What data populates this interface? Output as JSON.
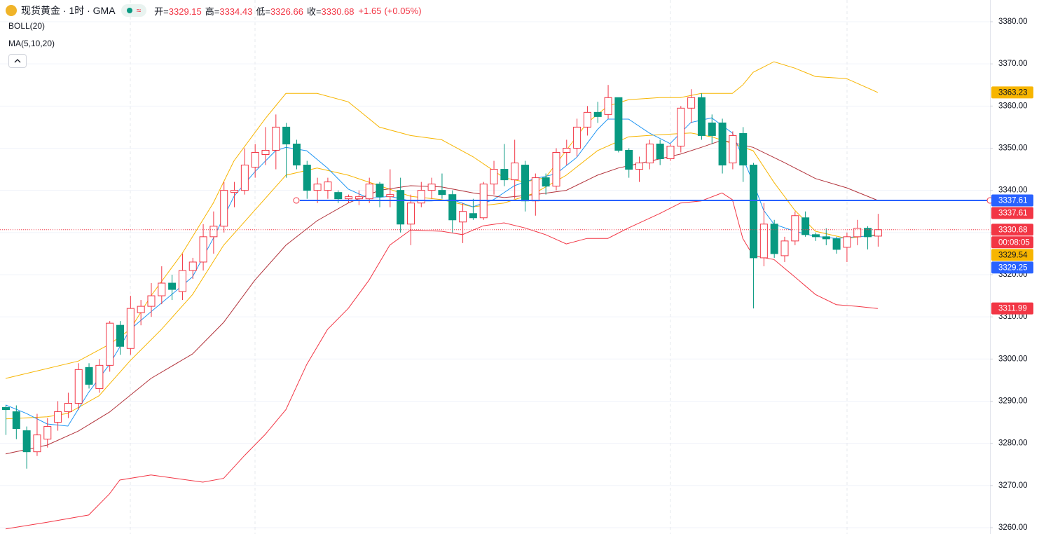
{
  "header": {
    "title": "现货黄金 · 1时 · GMA",
    "ohlc": [
      {
        "label": "开=",
        "value": 3329.15
      },
      {
        "label": "高=",
        "value": 3334.43
      },
      {
        "label": "低=",
        "value": 3326.66
      },
      {
        "label": "收=",
        "value": 3330.68
      }
    ],
    "change": "+1.65",
    "change_pct": "(+0.05%)"
  },
  "indicators": [
    "BOLL(20)",
    "MA(5,10,20)"
  ],
  "chart_data": {
    "type": "candlestick",
    "up_color": "#f23645",
    "down_color": "#089981",
    "open": [
      3288.5,
      3287.5,
      3283,
      3278,
      3281,
      3285,
      3287.5,
      3289.5,
      3298,
      3293,
      3298.5,
      3308,
      3302.5,
      3311,
      3312.5,
      3315,
      3318,
      3316,
      3321,
      3323,
      3329,
      3331.5,
      3339.5,
      3340,
      3345.5,
      3348.5,
      3349.5,
      3355,
      3351,
      3346,
      3340,
      3340,
      3339.5,
      3338,
      3338,
      3338,
      3341.5,
      3338.5,
      3340,
      3332,
      3337,
      3340,
      3340,
      3339,
      3332.5,
      3334.5,
      3333.5,
      3341.5,
      3345,
      3342.5,
      3346,
      3337.5,
      3343,
      3341,
      3349,
      3350,
      3355,
      3358.5,
      3358,
      3362,
      3349.5,
      3345,
      3346.5,
      3351,
      3347.5,
      3350.5,
      3359.5,
      3362,
      3356,
      3356,
      3346.5,
      3353.5,
      3346,
      3324,
      3332,
      3324.5,
      3328,
      3333.5,
      3329.5,
      3329,
      3328.5,
      3326.5,
      3329,
      3331,
      3329.15
    ],
    "high": [
      3289,
      3289,
      3284,
      3287,
      3286,
      3290,
      3292,
      3299,
      3299,
      3300,
      3309,
      3309,
      3315,
      3314,
      3318,
      3322,
      3320,
      3325,
      3324,
      3332,
      3335,
      3342,
      3342,
      3350,
      3351,
      3355,
      3358,
      3356,
      3352,
      3347,
      3343,
      3343,
      3340,
      3339,
      3340,
      3343,
      3342,
      3345,
      3343,
      3339,
      3342,
      3343,
      3344,
      3340,
      3337,
      3338,
      3342,
      3347,
      3351,
      3352,
      3347,
      3344,
      3344,
      3350,
      3352,
      3357,
      3360,
      3361,
      3365,
      3362,
      3350,
      3348,
      3352,
      3352,
      3351,
      3360,
      3364,
      3363,
      3358,
      3357,
      3354,
      3355,
      3346.5,
      3337,
      3333,
      3329,
      3335,
      3335,
      3330,
      3331,
      3329,
      3330,
      3333,
      3331.5,
      3334.43
    ],
    "low": [
      3282,
      3281,
      3274,
      3277,
      3279,
      3283,
      3286,
      3288,
      3293,
      3292,
      3297,
      3301,
      3301,
      3308,
      3310,
      3313,
      3314,
      3314,
      3319,
      3321,
      3325,
      3330,
      3336,
      3339,
      3343,
      3346,
      3345,
      3343,
      3345,
      3338,
      3337,
      3338,
      3337,
      3337,
      3336.5,
      3337,
      3336,
      3336,
      3330,
      3327,
      3336,
      3338,
      3338,
      3330,
      3327.5,
      3333,
      3333,
      3339,
      3341,
      3338,
      3335,
      3334,
      3339,
      3340,
      3346,
      3348,
      3353,
      3356,
      3357,
      3349,
      3343,
      3342,
      3345,
      3346,
      3347,
      3349,
      3356,
      3352,
      3351,
      3344,
      3345,
      3342,
      3312,
      3322,
      3324,
      3323,
      3327,
      3329,
      3328,
      3327,
      3325,
      3323,
      3327,
      3326,
      3326.66
    ],
    "close": [
      3288,
      3283.5,
      3278,
      3282,
      3284,
      3287.5,
      3289.5,
      3297.5,
      3294,
      3298.5,
      3308.5,
      3303,
      3312,
      3312.5,
      3315,
      3318,
      3316.5,
      3321,
      3323,
      3329,
      3331.5,
      3340,
      3340,
      3346,
      3349,
      3349.5,
      3355,
      3351,
      3346,
      3340,
      3341.5,
      3342,
      3338,
      3338.5,
      3338.5,
      3341.5,
      3338.5,
      3339,
      3332,
      3337,
      3340,
      3341.5,
      3339,
      3333,
      3335,
      3333.5,
      3341.5,
      3345,
      3342.5,
      3346.5,
      3337.5,
      3343,
      3341,
      3349,
      3350,
      3355,
      3358.5,
      3357.5,
      3362,
      3349.5,
      3345,
      3346.5,
      3351,
      3347.5,
      3350.5,
      3359.5,
      3362,
      3353,
      3353,
      3346,
      3353,
      3346,
      3324,
      3332,
      3325,
      3328,
      3334,
      3329.5,
      3329,
      3328.5,
      3326,
      3329,
      3331,
      3329,
      3330.68
    ],
    "lines": [
      {
        "color": "#f7b500",
        "x": [
          0,
          7,
          10,
          12,
          14,
          17,
          20,
          22,
          25,
          27,
          30,
          33,
          36,
          39,
          42,
          45,
          48,
          50,
          52,
          54,
          56,
          58,
          60,
          63,
          65,
          67,
          70,
          71,
          72,
          74,
          76,
          78,
          81,
          84
        ],
        "values": [
          3295.4,
          3299.5,
          3303.5,
          3307,
          3315,
          3325,
          3337,
          3347,
          3357,
          3363,
          3363,
          3361,
          3355,
          3353,
          3352,
          3348,
          3343,
          3342,
          3343,
          3349.5,
          3356,
          3360,
          3361.5,
          3362,
          3362,
          3363,
          3363,
          3365,
          3368,
          3370.5,
          3369,
          3367,
          3366.5,
          3363.23
        ]
      },
      {
        "color": "#f7b500",
        "x": [
          0,
          4,
          6,
          9,
          12,
          15,
          18,
          21,
          24,
          27,
          30,
          33,
          36,
          39,
          42,
          45,
          48,
          51,
          54,
          57,
          60,
          63,
          66,
          68,
          70,
          72,
          74,
          76,
          78,
          81,
          84
        ],
        "values": [
          3285.8,
          3286.3,
          3287.1,
          3291.3,
          3299.6,
          3307,
          3315.3,
          3327,
          3335.3,
          3343.6,
          3345.3,
          3343.6,
          3341.1,
          3338.6,
          3337.8,
          3336.1,
          3337,
          3339.4,
          3343.6,
          3349.4,
          3352.7,
          3353.2,
          3353.6,
          3352.7,
          3351.1,
          3349.4,
          3341.9,
          3335.3,
          3330.3,
          3328.6,
          3329.54
        ]
      },
      {
        "color": "#2196f3",
        "x": [
          0,
          2,
          4,
          6,
          8,
          10,
          12,
          14,
          16,
          18,
          20,
          22,
          24,
          26,
          27,
          29,
          31,
          33,
          35,
          37,
          39,
          41,
          43,
          45,
          47,
          49,
          51,
          53,
          55,
          57,
          58,
          60,
          62,
          64,
          66,
          68,
          70,
          72,
          73,
          74,
          76,
          78,
          80,
          82,
          84
        ],
        "values": [
          3289.1,
          3287.1,
          3284.6,
          3284.1,
          3292.1,
          3298.7,
          3307,
          3311.2,
          3315.3,
          3319.5,
          3328.6,
          3338.6,
          3344.4,
          3349.4,
          3350.2,
          3349.4,
          3345.3,
          3340.3,
          3338.1,
          3338.6,
          3337.5,
          3337.5,
          3337.8,
          3336.1,
          3337.8,
          3341.1,
          3342.8,
          3343.9,
          3347.8,
          3354.4,
          3356.9,
          3356.9,
          3353.6,
          3351.1,
          3356.1,
          3357.2,
          3353.6,
          3341.9,
          3335.3,
          3332,
          3330.3,
          3329.1,
          3328.6,
          3329,
          3329.25
        ]
      },
      {
        "color": "#b2333b",
        "x": [
          0,
          4,
          7,
          10,
          14,
          18,
          21,
          24,
          27,
          30,
          33,
          36,
          39,
          42,
          45,
          48,
          51,
          54,
          57,
          59,
          62,
          65,
          67,
          69,
          72,
          75,
          78,
          81,
          84
        ],
        "values": [
          3277.5,
          3279.6,
          3282.9,
          3287.4,
          3295.4,
          3301.2,
          3308.7,
          3318.7,
          3327,
          3332.8,
          3337,
          3340,
          3341.1,
          3340.8,
          3339.4,
          3338.3,
          3339,
          3340,
          3343.6,
          3345.3,
          3346.9,
          3348.6,
          3350.2,
          3351.9,
          3350.2,
          3346.6,
          3342.8,
          3340.6,
          3337.61
        ]
      },
      {
        "color": "#f23645",
        "x": [
          0,
          4,
          8,
          10,
          11,
          14,
          19,
          21,
          23,
          25,
          27,
          29,
          31,
          33,
          35,
          37,
          39,
          42,
          44,
          46,
          48,
          50,
          52,
          54,
          56,
          58,
          60,
          63,
          65,
          67,
          69,
          70,
          71,
          72,
          74,
          76,
          78,
          80,
          82,
          84
        ],
        "values": [
          3259.7,
          3261.3,
          3263,
          3268,
          3271.3,
          3272.5,
          3270.8,
          3271.7,
          3277.1,
          3282.1,
          3288,
          3298.7,
          3307,
          3312,
          3318.7,
          3327,
          3330.6,
          3330.3,
          3329.5,
          3331.6,
          3332.3,
          3331.1,
          3329.5,
          3327.3,
          3328.6,
          3328.6,
          3331.1,
          3334.5,
          3337,
          3337.5,
          3339.4,
          3337.8,
          3328.6,
          3324.5,
          3323.6,
          3319.5,
          3315.3,
          3312.9,
          3312.5,
          3311.99
        ]
      }
    ],
    "price_line": {
      "value": 3337.61,
      "color": "#2962ff"
    },
    "last_price": {
      "value": 3330.68,
      "color": "#f23645"
    },
    "price_labels": [
      {
        "value": 3363.23,
        "bg": "#f7b500",
        "fg": "#131722"
      },
      {
        "value": 3337.61,
        "bg": "#2962ff",
        "fg": "#ffffff"
      },
      {
        "value": 3337.61,
        "bg": "#f23645",
        "fg": "#ffffff"
      },
      {
        "value": 3330.68,
        "bg": "#f23645",
        "fg": "#ffffff"
      },
      {
        "label": "00:08:05",
        "bg": "#f23645",
        "fg": "#ffffff"
      },
      {
        "value": 3329.54,
        "bg": "#f7b500",
        "fg": "#131722"
      },
      {
        "value": 3329.25,
        "bg": "#2962ff",
        "fg": "#ffffff"
      },
      {
        "value": 3311.99,
        "bg": "#f23645",
        "fg": "#ffffff"
      }
    ],
    "ylim": [
      3258.5,
      3385.15
    ],
    "yticks": [
      {
        "value": 3260,
        "label": "3260.00"
      },
      {
        "value": 3270,
        "label": "3270.00"
      },
      {
        "value": 3280,
        "label": "3280.00"
      },
      {
        "value": 3290,
        "label": "3290.00"
      },
      {
        "value": 3300,
        "label": "3300.00"
      },
      {
        "value": 3310,
        "label": "3310.00"
      },
      {
        "value": 3320,
        "label": "3320.00"
      },
      {
        "value": 3330,
        "label": "3330.00"
      },
      {
        "value": 3340,
        "label": "3340.00"
      },
      {
        "value": 3350,
        "label": "3350.00"
      },
      {
        "value": 3360,
        "label": "3360.00"
      },
      {
        "value": 3370,
        "label": "3370.00"
      },
      {
        "value": 3380,
        "label": "3380.00"
      }
    ],
    "grid": true
  }
}
